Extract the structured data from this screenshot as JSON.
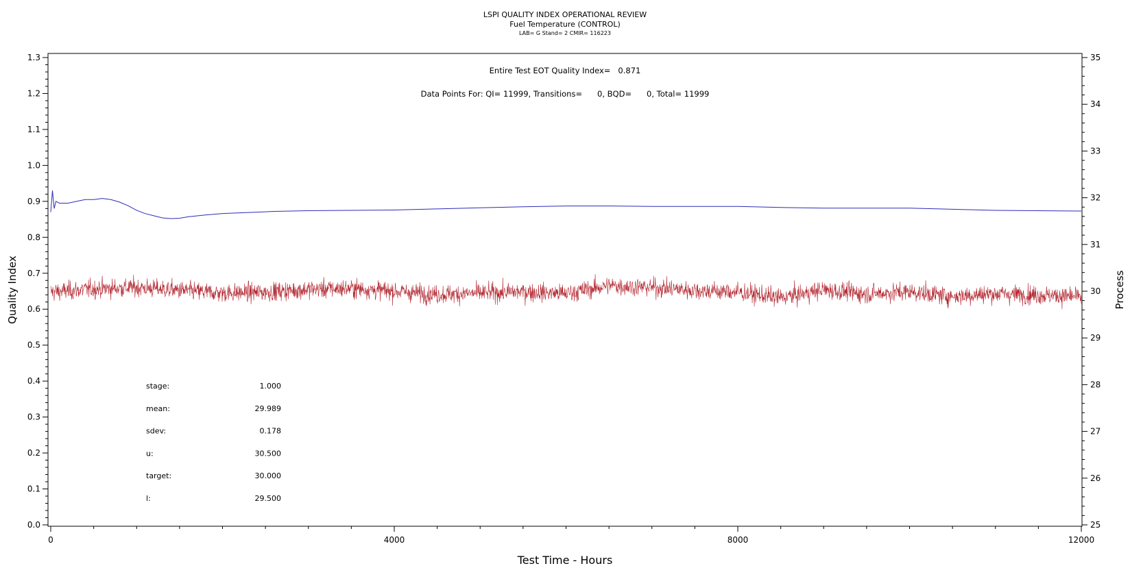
{
  "chart_data": {
    "type": "line",
    "title": "LSPI QUALITY INDEX OPERATIONAL REVIEW",
    "subtitle": "Fuel Temperature (CONTROL)",
    "subtitle2": "LAB= G Stand= 2 CMIR= 116223",
    "xlabel": "Test Time - Hours",
    "ylabel_left": "Quality Index",
    "ylabel_right": "Process",
    "xlim": [
      0,
      12000
    ],
    "ylim_left": [
      0.0,
      1.3
    ],
    "ylim_right": [
      25,
      35
    ],
    "x_ticks": [
      "0",
      "4000",
      "8000",
      "12000"
    ],
    "y_ticks_left": [
      "0.0",
      "0.1",
      "0.2",
      "0.3",
      "0.4",
      "0.5",
      "0.6",
      "0.7",
      "0.8",
      "0.9",
      "1.0",
      "1.1",
      "1.2",
      "1.3"
    ],
    "y_ticks_right": [
      "25",
      "26",
      "27",
      "28",
      "29",
      "30",
      "31",
      "32",
      "33",
      "34",
      "35"
    ],
    "annotations": {
      "quality_index": "Entire Test EOT Quality Index=   0.871",
      "data_points": "Data Points For: QI= 11999, Transitions=      0, BQD=      0, Total= 11999"
    },
    "stats": [
      {
        "label": "stage:",
        "value": "1.000"
      },
      {
        "label": "mean:",
        "value": "29.989"
      },
      {
        "label": "sdev:",
        "value": "0.178"
      },
      {
        "label": "u:",
        "value": "30.500"
      },
      {
        "label": "target:",
        "value": "30.000"
      },
      {
        "label": "l:",
        "value": "29.500"
      }
    ],
    "series": [
      {
        "axis": "left",
        "color": "#2b2bb8",
        "x": [
          0,
          20,
          40,
          60,
          100,
          200,
          300,
          400,
          500,
          600,
          700,
          800,
          900,
          1000,
          1100,
          1200,
          1300,
          1400,
          1500,
          1600,
          1800,
          2000,
          2200,
          2400,
          2600,
          2800,
          3000,
          3500,
          4000,
          4500,
          5000,
          5500,
          6000,
          6500,
          7000,
          7500,
          8000,
          8500,
          9000,
          9500,
          10000,
          10500,
          11000,
          11500,
          12000
        ],
        "values": [
          0.87,
          0.93,
          0.88,
          0.9,
          0.895,
          0.895,
          0.9,
          0.905,
          0.905,
          0.908,
          0.905,
          0.898,
          0.888,
          0.875,
          0.866,
          0.86,
          0.854,
          0.852,
          0.853,
          0.857,
          0.862,
          0.866,
          0.868,
          0.87,
          0.872,
          0.873,
          0.874,
          0.875,
          0.876,
          0.879,
          0.882,
          0.885,
          0.887,
          0.887,
          0.886,
          0.886,
          0.886,
          0.883,
          0.881,
          0.881,
          0.881,
          0.878,
          0.875,
          0.874,
          0.873
        ]
      },
      {
        "axis": "right",
        "color": "#b0202a",
        "x": [
          0,
          500,
          1000,
          1500,
          2000,
          2500,
          3000,
          3500,
          4000,
          4500,
          5000,
          5500,
          6000,
          6500,
          7000,
          7500,
          8000,
          8500,
          9000,
          9500,
          10000,
          10500,
          11000,
          11500,
          12000
        ],
        "values": [
          29.98,
          30.05,
          30.08,
          30.02,
          29.96,
          29.98,
          30.04,
          30.06,
          30.0,
          29.93,
          29.96,
          29.99,
          29.95,
          30.12,
          30.08,
          30.02,
          29.98,
          29.86,
          30.03,
          29.94,
          29.99,
          29.89,
          29.95,
          29.92,
          29.88
        ],
        "noise_sd": 0.18,
        "n_points": 11999
      }
    ]
  }
}
